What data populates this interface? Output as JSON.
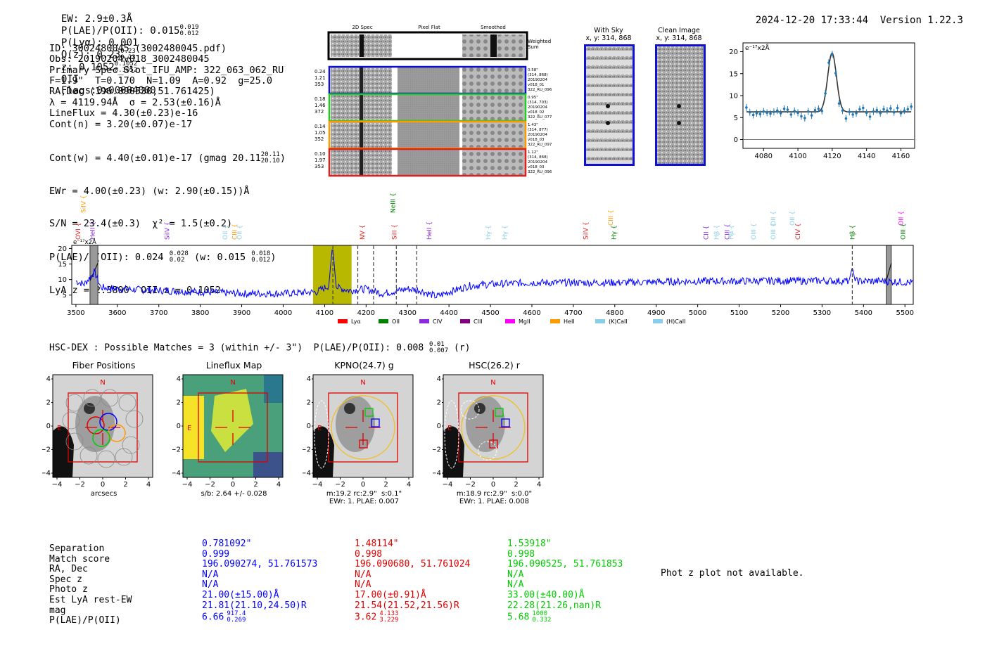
{
  "header": {
    "ew": "EW: 2.9±0.3Å",
    "plae": "P(LAE)/P(OII): 0.015",
    "plae_hi": "0.019",
    "plae_lo": "0.012",
    "plya": "P(Lyα): 0.001",
    "qz": "Q(z): 0.23",
    "qz_hi": "0.23",
    "qz_lo": "0.23",
    "z": "z: 0.1052",
    "z_hi": "0.1052",
    "z_lo": "0.1052",
    "z_line": "OII",
    "flags": "Flags:0x00004000",
    "timestamp": "2024-12-20 17:33:44",
    "version": "Version 1.22.3"
  },
  "info": {
    "lines": [
      "ID: 3002480045 (3002480045.pdf)",
      "Obs: 20190204v018_3002480045",
      "Primary Spec_Slot_IFU_AMP: 322_063_062_RU",
      "F=1.9\"  T=0.170  N=1.09  A=0.92  g=25.0",
      "RA,Dec (196.090530,51.761425)",
      "λ = 4119.94Å  σ = 2.53(±0.16)Å",
      "LineFlux = 4.30(±0.23)e-16",
      "Cont(n) = 3.20(±0.07)e-17"
    ],
    "contw": "Cont(w) = 4.40(±0.01)e-17 (gmag 20.11",
    "contw_hi": "20.11",
    "contw_lo": "20.10",
    "contw_end": ")",
    "ewr": "EWr = 4.00(±0.23) (w: 2.90(±0.15))Å",
    "sn": "S/N = 23.4(±0.3)  χ² = 1.5(±0.2)",
    "plae2": "P(LAE)/P(OII): 0.024",
    "plae2_hi": "0.028",
    "plae2_lo": "0.02",
    "plae2_w": "(w: 0.015",
    "plae2_w_hi": "0.018",
    "plae2_w_lo": "0.012",
    "lya": "LyA z = 2.3890  OII z = 0.1052"
  },
  "cutouts": {
    "col_titles": [
      "2D Spec",
      "Pixel Flat",
      "Smoothed"
    ],
    "weighted_label": "Weighted\nSum",
    "rows": [
      {
        "left": "0.24\n1.21\n353",
        "right": "0.58\"\n(314, 868)\n20190204\nv018_01\n322_RU_096",
        "color": "#1010d0"
      },
      {
        "left": "0.18\n1.46\n372",
        "right": "0.95\"\n(314, 703)\n20190204\nv018_02\n322_RU_077",
        "color": "#22cc22"
      },
      {
        "left": "0.14\n1.05\n352",
        "right": "1.43\"\n(314, 877)\n20190204\nv018_03\n322_RU_097",
        "color": "#ff9900"
      },
      {
        "left": "0.10\n1.97\n353",
        "right": "1.12\"\n(314, 868)\n20190204\nv018_03\n322_RU_096",
        "color": "#e02020"
      }
    ],
    "with_sky": "With Sky\nx, y: 314, 868",
    "clean_image": "Clean Image\nx, y: 314, 868"
  },
  "chart_data": [
    {
      "type": "scatter",
      "title": "",
      "unit_label": "e⁻¹⁷x2Å",
      "xlim": [
        4068,
        4168
      ],
      "ylim": [
        -2,
        22
      ],
      "xticks": [
        4080,
        4100,
        4120,
        4140,
        4160
      ],
      "yticks": [
        0,
        5,
        10,
        15,
        20
      ],
      "gauss": {
        "center": 4119.9,
        "sigma": 2.53,
        "amp": 13.4,
        "cont": 6.3
      },
      "points": [
        [
          4070,
          7.3
        ],
        [
          4072,
          6.2
        ],
        [
          4074,
          5.6
        ],
        [
          4076,
          6.0
        ],
        [
          4078,
          5.8
        ],
        [
          4080,
          6.4
        ],
        [
          4082,
          6.1
        ],
        [
          4084,
          5.9
        ],
        [
          4086,
          6.3
        ],
        [
          4088,
          6.6
        ],
        [
          4090,
          6.0
        ],
        [
          4092,
          7.0
        ],
        [
          4094,
          6.8
        ],
        [
          4096,
          5.7
        ],
        [
          4098,
          6.5
        ],
        [
          4100,
          6.1
        ],
        [
          4102,
          5.3
        ],
        [
          4104,
          4.9
        ],
        [
          4106,
          6.4
        ],
        [
          4108,
          5.5
        ],
        [
          4110,
          6.7
        ],
        [
          4112,
          7.0
        ],
        [
          4114,
          6.5
        ],
        [
          4116,
          10.5
        ],
        [
          4118,
          17.5
        ],
        [
          4120,
          19.4
        ],
        [
          4122,
          15.1
        ],
        [
          4124,
          8.2
        ],
        [
          4126,
          6.6
        ],
        [
          4128,
          4.8
        ],
        [
          4130,
          6.3
        ],
        [
          4132,
          5.7
        ],
        [
          4134,
          6.0
        ],
        [
          4136,
          6.9
        ],
        [
          4138,
          7.2
        ],
        [
          4140,
          6.1
        ],
        [
          4142,
          5.2
        ],
        [
          4144,
          6.4
        ],
        [
          4146,
          6.7
        ],
        [
          4148,
          6.0
        ],
        [
          4150,
          6.9
        ],
        [
          4152,
          6.6
        ],
        [
          4154,
          7.1
        ],
        [
          4156,
          6.2
        ],
        [
          4158,
          7.2
        ],
        [
          4160,
          6.0
        ],
        [
          4162,
          6.6
        ],
        [
          4164,
          6.9
        ],
        [
          4166,
          7.5
        ]
      ]
    },
    {
      "type": "line",
      "title": "",
      "unit_label": "e⁻¹⁷x2Å",
      "xlim": [
        3490,
        5520
      ],
      "ylim": [
        2,
        21
      ],
      "xticks": [
        3500,
        3600,
        3700,
        3800,
        3900,
        4000,
        4100,
        4200,
        4300,
        4400,
        4500,
        4600,
        4700,
        4800,
        4900,
        5000,
        5100,
        5200,
        5300,
        5400,
        5500
      ],
      "yticks": [
        5,
        10,
        15,
        20
      ],
      "series": [
        {
          "color": "#0000ff",
          "profile": [
            [
              3500,
              9.5
            ],
            [
              3520,
              8.5
            ],
            [
              3545,
              12.5
            ],
            [
              3560,
              7.5
            ],
            [
              3600,
              7.0
            ],
            [
              3700,
              6.5
            ],
            [
              3800,
              6.0
            ],
            [
              3900,
              5.5
            ],
            [
              4000,
              5.5
            ],
            [
              4080,
              6.0
            ],
            [
              4110,
              8.0
            ],
            [
              4119,
              21.0
            ],
            [
              4128,
              7.5
            ],
            [
              4160,
              6.5
            ],
            [
              4200,
              7.0
            ],
            [
              4240,
              5.5
            ],
            [
              4300,
              7.0
            ],
            [
              4330,
              6.5
            ],
            [
              4370,
              4.5
            ],
            [
              4400,
              6.0
            ],
            [
              4450,
              8.0
            ],
            [
              4500,
              8.5
            ],
            [
              4600,
              9.0
            ],
            [
              4700,
              9.0
            ],
            [
              4800,
              9.0
            ],
            [
              4900,
              9.2
            ],
            [
              5000,
              9.5
            ],
            [
              5100,
              9.5
            ],
            [
              5200,
              9.6
            ],
            [
              5300,
              9.6
            ],
            [
              5365,
              9.5
            ],
            [
              5373,
              14.0
            ],
            [
              5380,
              9.5
            ],
            [
              5450,
              9.5
            ],
            [
              5520,
              9.0
            ]
          ]
        }
      ],
      "shaded": [
        {
          "x0": 4072,
          "x1": 4165,
          "color": "#b8b800"
        }
      ],
      "hatched": [
        [
          3534,
          3553
        ],
        [
          5455,
          5467
        ]
      ],
      "dashed": [
        4119.9,
        4180,
        4218,
        4273,
        4322,
        5373
      ],
      "line_markers": [
        {
          "label": "OVI",
          "x": 3505,
          "row": 0,
          "color": "#e02020"
        },
        {
          "label": "SiIV",
          "x": 3518,
          "row": 2,
          "color": "#ff9900"
        },
        {
          "label": "HeII",
          "x": 3540,
          "row": 0,
          "color": "#8a2be2"
        },
        {
          "label": "SiIV",
          "x": 3720,
          "row": 0,
          "color": "#8a2be2"
        },
        {
          "label": "OII",
          "x": 3860,
          "row": 0,
          "color": "#87ceeb"
        },
        {
          "label": "CIII",
          "x": 3883,
          "row": 0,
          "color": "#ff9900"
        },
        {
          "label": "OII",
          "x": 3895,
          "row": 0,
          "color": "#87ceeb"
        },
        {
          "label": "NV",
          "x": 4191,
          "row": 0,
          "color": "#e02020"
        },
        {
          "label": "NeIII",
          "x": 4265,
          "row": 2,
          "color": "#008000"
        },
        {
          "label": "SiII",
          "x": 4268,
          "row": 0,
          "color": "#e02020"
        },
        {
          "label": "HeII",
          "x": 4352,
          "row": 0,
          "color": "#8a2be2"
        },
        {
          "label": "Hγ",
          "x": 4495,
          "row": 0,
          "color": "#87ceeb"
        },
        {
          "label": "Hγ",
          "x": 4535,
          "row": 0,
          "color": "#87ceeb"
        },
        {
          "label": "SiIV",
          "x": 4730,
          "row": 0,
          "color": "#e02020"
        },
        {
          "label": "CIII",
          "x": 4790,
          "row": 1,
          "color": "#ff9900"
        },
        {
          "label": "Hγ",
          "x": 4798,
          "row": 0,
          "color": "#008000"
        },
        {
          "label": "CII",
          "x": 5020,
          "row": 0,
          "color": "#8a2be2"
        },
        {
          "label": "Hβ",
          "x": 5046,
          "row": 0,
          "color": "#87ceeb"
        },
        {
          "label": "CIII",
          "x": 5071,
          "row": 0,
          "color": "#8a2be2"
        },
        {
          "label": "Hβ",
          "x": 5080,
          "row": 0,
          "color": "#87ceeb"
        },
        {
          "label": "OIII",
          "x": 5135,
          "row": 0,
          "color": "#87ceeb"
        },
        {
          "label": "OIII",
          "x": 5182,
          "row": 0,
          "color": "#87ceeb"
        },
        {
          "label": "OII",
          "x": 5182,
          "row": 1,
          "color": "#87ceeb"
        },
        {
          "label": "OII",
          "x": 5228,
          "row": 1,
          "color": "#87ceeb"
        },
        {
          "label": "CIV",
          "x": 5242,
          "row": 0,
          "color": "#e02020"
        },
        {
          "label": "Hβ",
          "x": 5373,
          "row": 0,
          "color": "#008000"
        },
        {
          "label": "OII",
          "x": 5490,
          "row": 1,
          "color": "#ff00ff"
        },
        {
          "label": "OIII",
          "x": 5495,
          "row": 0,
          "color": "#008000"
        }
      ],
      "legend": [
        {
          "label": "Lyα",
          "color": "#ff0000"
        },
        {
          "label": "OII",
          "color": "#008000"
        },
        {
          "label": "CIV",
          "color": "#8a2be2"
        },
        {
          "label": "CIII",
          "color": "#800080"
        },
        {
          "label": "MgII",
          "color": "#ff00ff"
        },
        {
          "label": "HeII",
          "color": "#ff9900"
        },
        {
          "label": "(K)CaII",
          "color": "#87ceeb"
        },
        {
          "label": "(H)CaII",
          "color": "#87ceeb"
        }
      ]
    }
  ],
  "hsc": {
    "title": "HSC-DEX : Possible Matches = 3 (within +/- 3\")  P(LAE)/P(OII): 0.008",
    "title_hi": "0.01",
    "title_lo": "0.007",
    "title_end": "(r)",
    "panels": [
      {
        "title": "Fiber Positions",
        "caption": "arcsecs"
      },
      {
        "title": "Lineflux Map",
        "caption": "s/b: 2.64 +/- 0.028"
      },
      {
        "title": "KPNO(24.7) g",
        "caption": "m:19.2 rc:2.9\"  s:0.1\"\nEWr: 1. PLAE: 0.007"
      },
      {
        "title": "HSC(26.2) r",
        "caption": "m:18.9 rc:2.9\"  s:0.0\"\nEWr: 1. PLAE: 0.008"
      }
    ],
    "ticks": [
      "4",
      "2",
      "0",
      "−2",
      "−4"
    ],
    "xticks": [
      "−4",
      "−2",
      "0",
      "2",
      "4"
    ],
    "compass_n": "N",
    "compass_e": "E"
  },
  "matches": {
    "labels": [
      "Separation",
      "Match score",
      "RA, Dec",
      "Spec z",
      "Photo z",
      "Est LyA rest-EW",
      "mag",
      "P(LAE)/P(OII)"
    ],
    "columns": [
      {
        "color": "#0000ff",
        "values": [
          "0.781092\"",
          "0.999",
          "196.090274, 51.761573",
          "N/A",
          "N/A",
          "21.00(±15.00)Å",
          "21.81(21.10,24.50)R"
        ],
        "plae": "6.66",
        "plae_hi": "917.4",
        "plae_lo": "0.269"
      },
      {
        "color": "#e00000",
        "values": [
          "1.48114\"",
          "0.998",
          "196.090680, 51.761024",
          "N/A",
          "N/A",
          "17.00(±0.91)Å",
          "21.54(21.52,21.56)R"
        ],
        "plae": "3.62",
        "plae_hi": "4.133",
        "plae_lo": "3.229"
      },
      {
        "color": "#00cc00",
        "values": [
          "1.53918\"",
          "0.998",
          "196.090525, 51.761853",
          "N/A",
          "N/A",
          "33.00(±40.00)Å",
          "22.28(21.26,nan)R"
        ],
        "plae": "5.68",
        "plae_hi": "1000",
        "plae_lo": "0.332"
      }
    ],
    "photz_note": "Phot z plot not available."
  }
}
